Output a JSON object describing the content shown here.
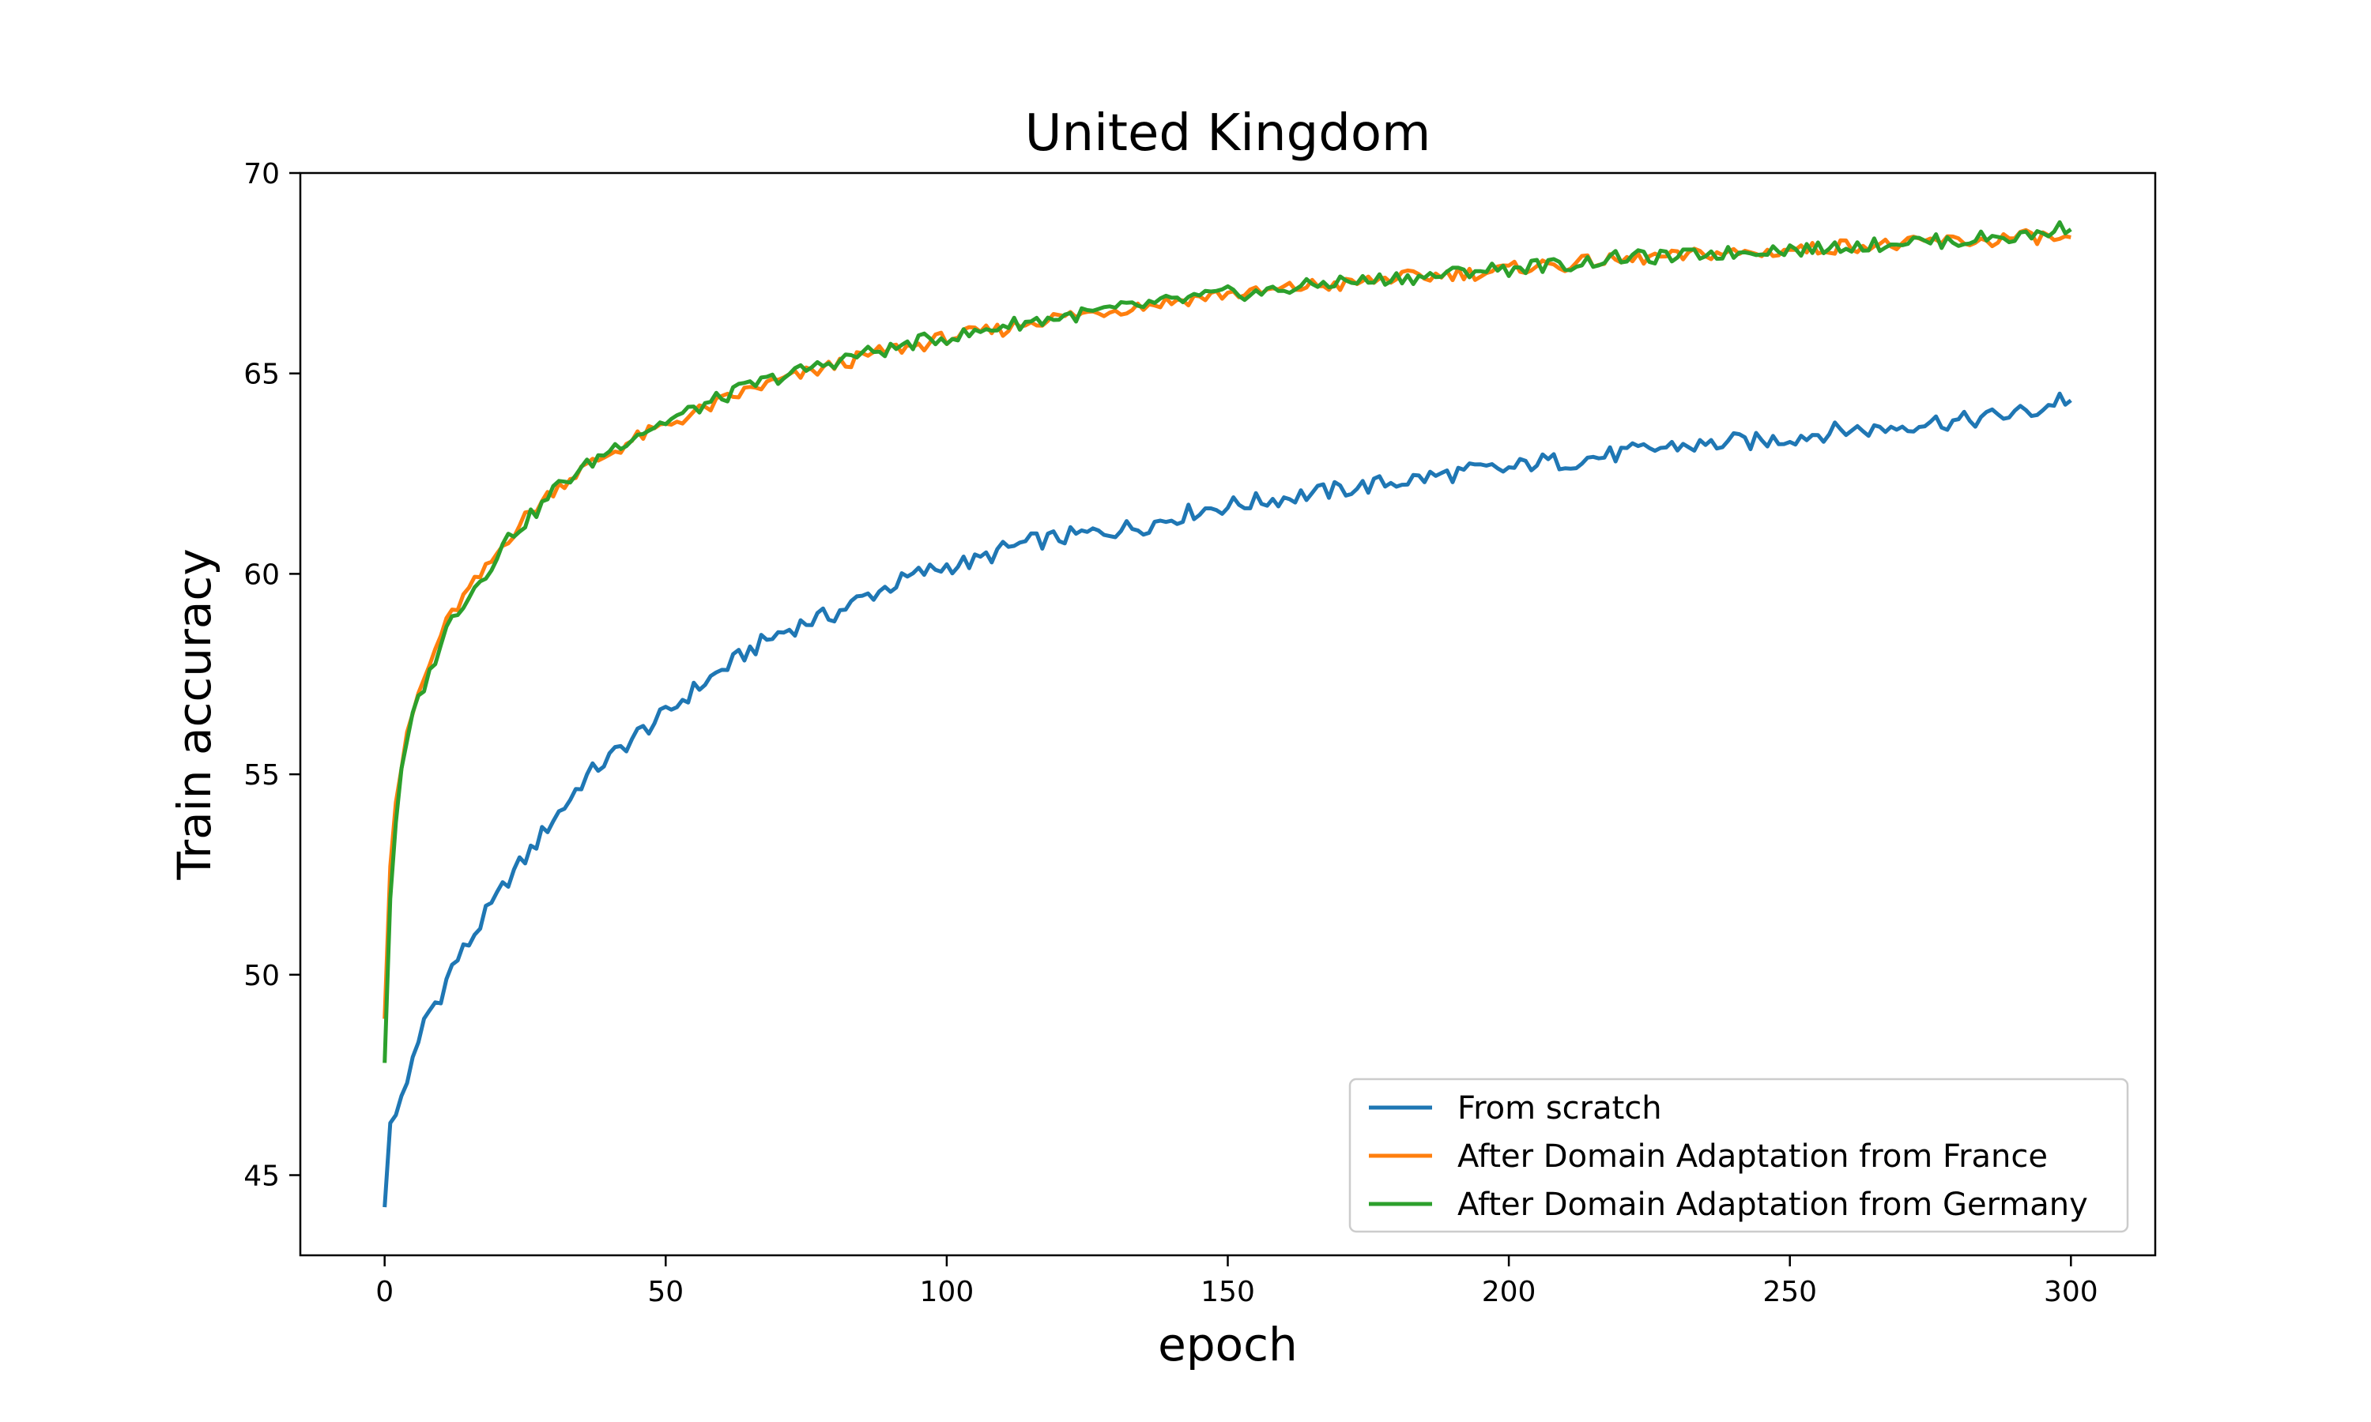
{
  "chart_data": {
    "type": "line",
    "title": "United Kingdom",
    "xlabel": "epoch",
    "ylabel": "Train accuracy",
    "xlim": [
      -15,
      315
    ],
    "ylim": [
      43,
      70
    ],
    "xticks": [
      0,
      50,
      100,
      150,
      200,
      250,
      300
    ],
    "yticks": [
      45,
      50,
      55,
      60,
      65,
      70
    ],
    "grid": false,
    "legend_position": "lower-right",
    "series": [
      {
        "name": "From scratch",
        "color": "#1f77b4",
        "x": [
          0,
          1,
          2,
          3,
          4,
          5,
          6,
          7,
          8,
          10,
          12,
          15,
          18,
          20,
          22,
          25,
          28,
          30,
          32,
          35,
          38,
          40,
          45,
          50,
          55,
          60,
          65,
          70,
          75,
          80,
          85,
          90,
          95,
          100,
          105,
          110,
          115,
          120,
          125,
          130,
          135,
          140,
          145,
          150,
          155,
          160,
          165,
          170,
          175,
          180,
          185,
          190,
          195,
          200,
          205,
          210,
          215,
          220,
          225,
          230,
          235,
          240,
          245,
          250,
          255,
          260,
          265,
          270,
          275,
          280,
          285,
          290,
          295,
          298,
          300
        ],
        "y": [
          44.2,
          46.3,
          46.5,
          47.0,
          47.4,
          47.8,
          48.2,
          48.9,
          49.1,
          49.5,
          50.2,
          50.8,
          51.5,
          51.9,
          52.4,
          52.9,
          53.5,
          53.9,
          54.2,
          54.8,
          55.2,
          55.4,
          56.0,
          56.5,
          57.1,
          57.6,
          58.1,
          58.5,
          58.8,
          59.0,
          59.4,
          59.7,
          60.0,
          60.2,
          60.3,
          60.6,
          60.8,
          60.9,
          61.0,
          61.1,
          61.2,
          61.4,
          61.6,
          61.7,
          61.8,
          61.9,
          62.0,
          62.1,
          62.2,
          62.3,
          62.4,
          62.5,
          62.6,
          62.6,
          62.8,
          62.8,
          62.9,
          63.0,
          63.1,
          63.2,
          63.2,
          63.3,
          63.3,
          63.4,
          63.5,
          63.6,
          63.6,
          63.7,
          63.8,
          63.8,
          63.9,
          64.0,
          64.1,
          64.4,
          64.3
        ]
      },
      {
        "name": "After Domain Adaptation from France",
        "color": "#ff7f0e",
        "x": [
          0,
          1,
          2,
          3,
          4,
          5,
          6,
          8,
          10,
          12,
          15,
          18,
          20,
          22,
          25,
          28,
          30,
          35,
          40,
          45,
          50,
          55,
          60,
          65,
          70,
          75,
          80,
          85,
          90,
          95,
          100,
          105,
          110,
          115,
          120,
          125,
          130,
          135,
          140,
          145,
          150,
          155,
          160,
          165,
          170,
          175,
          180,
          185,
          190,
          195,
          200,
          205,
          210,
          215,
          220,
          225,
          230,
          235,
          240,
          245,
          250,
          255,
          260,
          265,
          270,
          275,
          280,
          285,
          290,
          295,
          300
        ],
        "y": [
          48.9,
          52.7,
          54.3,
          55.2,
          55.9,
          56.5,
          57.0,
          57.7,
          58.5,
          59.0,
          59.6,
          60.1,
          60.5,
          60.9,
          61.4,
          61.8,
          62.1,
          62.6,
          63.0,
          63.4,
          63.7,
          64.0,
          64.3,
          64.6,
          64.8,
          65.0,
          65.2,
          65.4,
          65.6,
          65.7,
          65.9,
          66.0,
          66.1,
          66.3,
          66.4,
          66.5,
          66.6,
          66.7,
          66.8,
          66.9,
          67.0,
          67.0,
          67.1,
          67.2,
          67.2,
          67.3,
          67.4,
          67.4,
          67.5,
          67.5,
          67.6,
          67.7,
          67.7,
          67.8,
          67.8,
          67.9,
          67.9,
          68.0,
          68.0,
          68.0,
          68.1,
          68.1,
          68.2,
          68.2,
          68.2,
          68.3,
          68.3,
          68.3,
          68.4,
          68.4,
          68.3
        ]
      },
      {
        "name": "After Domain Adaptation from Germany",
        "color": "#2ca02c",
        "x": [
          0,
          1,
          2,
          3,
          4,
          5,
          6,
          8,
          10,
          12,
          15,
          18,
          20,
          22,
          25,
          28,
          30,
          35,
          40,
          45,
          50,
          55,
          60,
          65,
          70,
          75,
          80,
          85,
          90,
          95,
          100,
          105,
          110,
          115,
          120,
          125,
          130,
          135,
          140,
          145,
          150,
          155,
          160,
          165,
          170,
          175,
          180,
          185,
          190,
          195,
          200,
          205,
          210,
          215,
          220,
          225,
          230,
          235,
          240,
          245,
          250,
          255,
          260,
          265,
          270,
          275,
          280,
          285,
          290,
          295,
          300
        ],
        "y": [
          47.8,
          51.9,
          53.8,
          55.0,
          55.8,
          56.4,
          56.9,
          57.5,
          58.3,
          58.9,
          59.5,
          60.0,
          60.5,
          60.9,
          61.3,
          61.7,
          62.1,
          62.6,
          63.1,
          63.5,
          63.8,
          64.1,
          64.4,
          64.7,
          64.9,
          65.1,
          65.3,
          65.5,
          65.6,
          65.8,
          65.9,
          66.0,
          66.2,
          66.3,
          66.4,
          66.5,
          66.6,
          66.7,
          66.8,
          66.9,
          67.0,
          67.0,
          67.1,
          67.2,
          67.3,
          67.3,
          67.4,
          67.4,
          67.5,
          67.6,
          67.6,
          67.7,
          67.7,
          67.8,
          67.9,
          67.9,
          67.9,
          68.0,
          68.0,
          68.1,
          68.1,
          68.1,
          68.2,
          68.2,
          68.3,
          68.3,
          68.3,
          68.4,
          68.4,
          68.5,
          68.7
        ]
      }
    ]
  }
}
